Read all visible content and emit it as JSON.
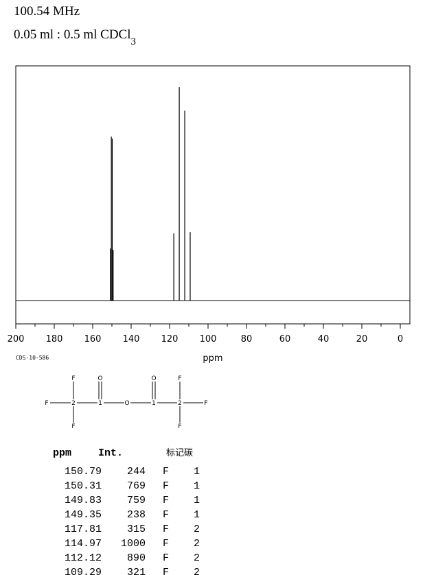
{
  "header": {
    "frequency": "100.54 MHz",
    "solvent": "0.05 ml : 0.5 ml CDCl",
    "solvent_subscript": "3"
  },
  "chart_data": {
    "type": "stem",
    "xlabel": "ppm",
    "color": "#000000",
    "x": [
      150.79,
      150.31,
      149.83,
      149.35,
      117.81,
      114.97,
      112.12,
      109.29
    ],
    "values": [
      244,
      769,
      759,
      238,
      315,
      1000,
      890,
      321
    ],
    "xlim": [
      200,
      -5
    ],
    "xticks": [
      200,
      180,
      160,
      140,
      120,
      100,
      80,
      60,
      40,
      20,
      0
    ],
    "xminorticks": [
      190,
      170,
      150,
      130,
      110,
      90,
      70,
      50,
      30,
      10
    ],
    "ylim": [
      -109,
      1100
    ]
  },
  "code": "CDS-10-586",
  "structure": {
    "atoms": [
      "F",
      "O",
      "O",
      "F",
      "F",
      "2",
      "1",
      "O",
      "1",
      "2",
      "F",
      "F",
      "F"
    ]
  },
  "table": {
    "headers": [
      "ppm",
      "Int.",
      "标记碳"
    ],
    "element": [
      "F",
      "F",
      "F",
      "F",
      "F",
      "F",
      "F",
      "F"
    ],
    "carbon": [
      1,
      1,
      1,
      1,
      2,
      2,
      2,
      2
    ]
  }
}
